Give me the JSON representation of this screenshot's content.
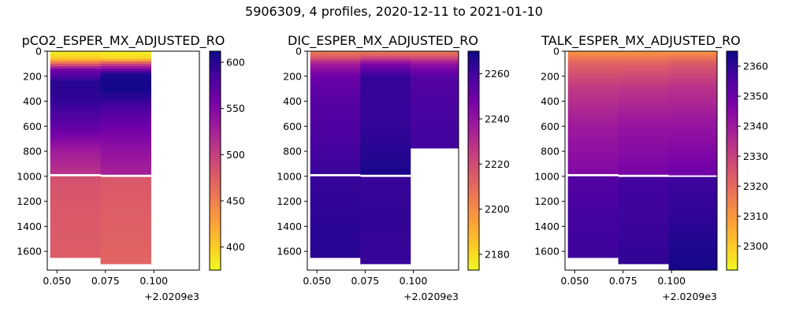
{
  "figure": {
    "suptitle": "5906309, 4 profiles, 2020-12-11 to 2021-01-10"
  },
  "colormap": {
    "name": "plasma",
    "stops": [
      "#f0f921",
      "#fdca26",
      "#fb9f3a",
      "#ed7953",
      "#d8576b",
      "#bd3786",
      "#9c179e",
      "#7201a8",
      "#46039f",
      "#0d0887"
    ]
  },
  "chart_data": [
    {
      "type": "heatmap",
      "title": "pCO2_ESPER_MX_ADJUSTED_RO",
      "xlabel": "",
      "ylabel": "",
      "x_offset_label": "+2.0209e3",
      "x_ticks": [
        0.05,
        0.075,
        0.1
      ],
      "x_tick_labels": [
        "0.050",
        "0.075",
        "0.100"
      ],
      "xlim": [
        0.045,
        0.1235
      ],
      "y_ticks": [
        0,
        200,
        400,
        600,
        800,
        1000,
        1200,
        1400,
        1600
      ],
      "ylim": [
        1750,
        0
      ],
      "y_inverted": true,
      "colorbar": {
        "vmin": 375,
        "vmax": 612,
        "ticks": [
          400,
          450,
          500,
          550,
          600
        ]
      },
      "columns": [
        {
          "x0": 0.0465,
          "x1": 0.0725,
          "max_depth": 1650,
          "gap": [
            980,
            1000
          ],
          "profile": [
            [
              0,
              380
            ],
            [
              60,
              400
            ],
            [
              100,
              470
            ],
            [
              150,
              560
            ],
            [
              250,
              600
            ],
            [
              400,
              595
            ],
            [
              600,
              570
            ],
            [
              800,
              530
            ],
            [
              980,
              510
            ],
            [
              1000,
              485
            ],
            [
              1200,
              480
            ],
            [
              1400,
              478
            ],
            [
              1650,
              476
            ]
          ]
        },
        {
          "x0": 0.0725,
          "x1": 0.0985,
          "max_depth": 1700,
          "gap": [
            985,
            1005
          ],
          "profile": [
            [
              0,
              378
            ],
            [
              60,
              395
            ],
            [
              100,
              490
            ],
            [
              180,
              605
            ],
            [
              300,
              610
            ],
            [
              500,
              575
            ],
            [
              700,
              550
            ],
            [
              900,
              530
            ],
            [
              985,
              525
            ],
            [
              1005,
              480
            ],
            [
              1200,
              476
            ],
            [
              1500,
              472
            ],
            [
              1700,
              470
            ]
          ]
        }
      ]
    },
    {
      "type": "heatmap",
      "title": "DIC_ESPER_MX_ADJUSTED_RO",
      "xlabel": "",
      "ylabel": "",
      "x_offset_label": "+2.0209e3",
      "x_ticks": [
        0.05,
        0.075,
        0.1
      ],
      "x_tick_labels": [
        "0.050",
        "0.075",
        "0.100"
      ],
      "xlim": [
        0.045,
        0.1235
      ],
      "y_ticks": [
        0,
        200,
        400,
        600,
        800,
        1000,
        1200,
        1400,
        1600
      ],
      "ylim": [
        1750,
        0
      ],
      "y_inverted": true,
      "colorbar": {
        "vmin": 2173,
        "vmax": 2270,
        "ticks": [
          2180,
          2200,
          2220,
          2240,
          2260
        ]
      },
      "columns": [
        {
          "x0": 0.0465,
          "x1": 0.0725,
          "max_depth": 1650,
          "gap": [
            980,
            1000
          ],
          "profile": [
            [
              0,
              2205
            ],
            [
              40,
              2212
            ],
            [
              100,
              2235
            ],
            [
              200,
              2250
            ],
            [
              400,
              2255
            ],
            [
              700,
              2258
            ],
            [
              980,
              2262
            ],
            [
              1000,
              2262
            ],
            [
              1300,
              2264
            ],
            [
              1650,
              2265
            ]
          ]
        },
        {
          "x0": 0.0725,
          "x1": 0.0985,
          "max_depth": 1700,
          "gap": [
            985,
            1005
          ],
          "profile": [
            [
              0,
              2205
            ],
            [
              40,
              2215
            ],
            [
              100,
              2245
            ],
            [
              200,
              2262
            ],
            [
              500,
              2262
            ],
            [
              800,
              2265
            ],
            [
              985,
              2268
            ],
            [
              1005,
              2262
            ],
            [
              1300,
              2263
            ],
            [
              1700,
              2262
            ]
          ]
        },
        {
          "x0": 0.0985,
          "x1": 0.1245,
          "max_depth": 775,
          "gap": null,
          "profile": [
            [
              0,
              2205
            ],
            [
              40,
              2215
            ],
            [
              100,
              2240
            ],
            [
              200,
              2255
            ],
            [
              400,
              2258
            ],
            [
              775,
              2260
            ]
          ]
        }
      ]
    },
    {
      "type": "heatmap",
      "title": "TALK_ESPER_MX_ADJUSTED_RO",
      "xlabel": "",
      "ylabel": "",
      "x_offset_label": "+2.0209e3",
      "x_ticks": [
        0.05,
        0.075,
        0.1
      ],
      "x_tick_labels": [
        "0.050",
        "0.075",
        "0.100"
      ],
      "xlim": [
        0.045,
        0.1235
      ],
      "y_ticks": [
        0,
        200,
        400,
        600,
        800,
        1000,
        1200,
        1400,
        1600
      ],
      "ylim": [
        1750,
        0
      ],
      "y_inverted": true,
      "colorbar": {
        "vmin": 2292,
        "vmax": 2365,
        "ticks": [
          2300,
          2310,
          2320,
          2330,
          2340,
          2350,
          2360
        ]
      },
      "columns": [
        {
          "x0": 0.0465,
          "x1": 0.0725,
          "max_depth": 1650,
          "gap": [
            980,
            1000
          ],
          "profile": [
            [
              0,
              2310
            ],
            [
              100,
              2322
            ],
            [
              300,
              2332
            ],
            [
              600,
              2340
            ],
            [
              980,
              2346
            ],
            [
              1000,
              2354
            ],
            [
              1300,
              2357
            ],
            [
              1650,
              2358
            ]
          ]
        },
        {
          "x0": 0.0725,
          "x1": 0.0985,
          "max_depth": 1700,
          "gap": [
            985,
            1005
          ],
          "profile": [
            [
              0,
              2310
            ],
            [
              100,
              2322
            ],
            [
              300,
              2333
            ],
            [
              600,
              2342
            ],
            [
              985,
              2348
            ],
            [
              1005,
              2357
            ],
            [
              1300,
              2358
            ],
            [
              1700,
              2360
            ]
          ]
        },
        {
          "x0": 0.0985,
          "x1": 0.1245,
          "max_depth": 1750,
          "gap": [
            990,
            1005
          ],
          "profile": [
            [
              0,
              2310
            ],
            [
              100,
              2324
            ],
            [
              300,
              2334
            ],
            [
              600,
              2342
            ],
            [
              990,
              2350
            ],
            [
              1005,
              2358
            ],
            [
              1300,
              2360
            ],
            [
              1600,
              2363
            ],
            [
              1750,
              2364
            ]
          ]
        }
      ]
    }
  ]
}
